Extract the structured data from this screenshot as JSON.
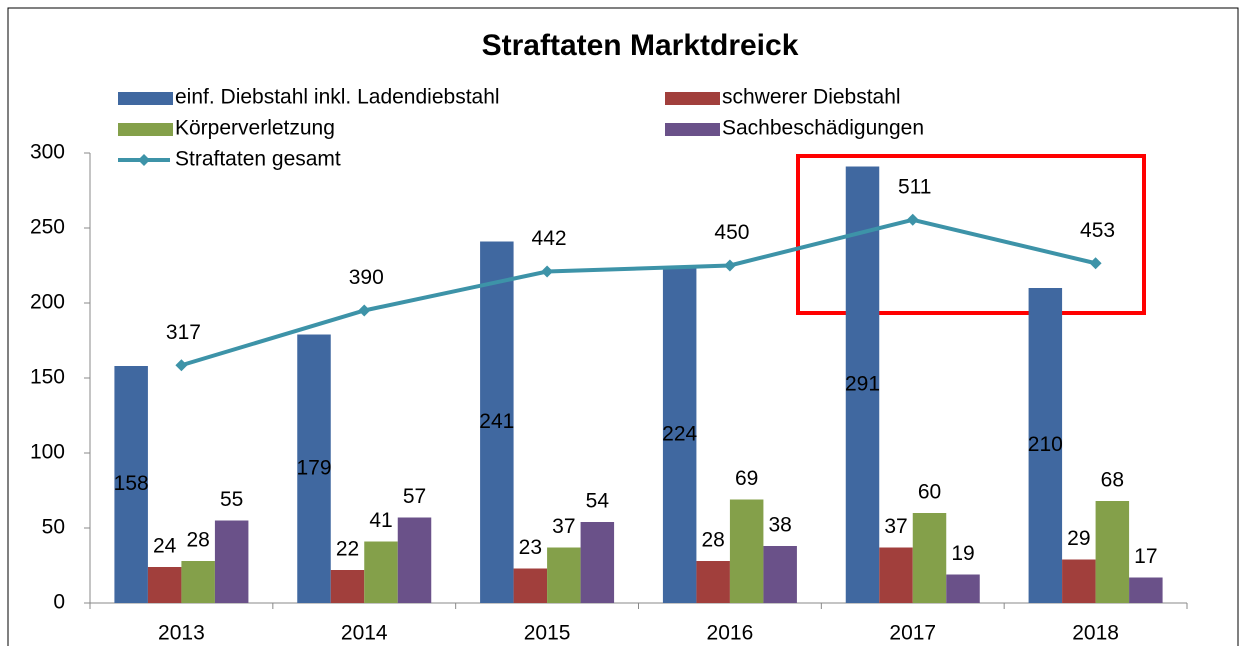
{
  "chart_data": {
    "type": "bar",
    "title": "Straftaten Marktdreick",
    "categories": [
      "2013",
      "2014",
      "2015",
      "2016",
      "2017",
      "2018"
    ],
    "series": [
      {
        "name": "einf. Diebstahl inkl. Ladendiebstahl",
        "color": "#4068a0",
        "values": [
          158,
          179,
          241,
          224,
          291,
          210
        ]
      },
      {
        "name": "schwerer Diebstahl",
        "color": "#a13f3c",
        "values": [
          24,
          22,
          23,
          28,
          37,
          29
        ]
      },
      {
        "name": "Körperverletzung",
        "color": "#84a04a",
        "values": [
          28,
          41,
          37,
          69,
          60,
          68
        ]
      },
      {
        "name": "Sachbeschädigungen",
        "color": "#6a5189",
        "values": [
          55,
          57,
          54,
          38,
          19,
          17
        ]
      },
      {
        "name": "Straftaten gesamt",
        "color": "#3d93a8",
        "type": "line",
        "axis": "y2",
        "values": [
          317,
          390,
          442,
          450,
          511,
          453
        ]
      }
    ],
    "ylim": [
      0,
      300
    ],
    "yticks": [
      0,
      50,
      100,
      150,
      200,
      250,
      300
    ],
    "y2lim": [
      0,
      600
    ],
    "grid": false
  }
}
